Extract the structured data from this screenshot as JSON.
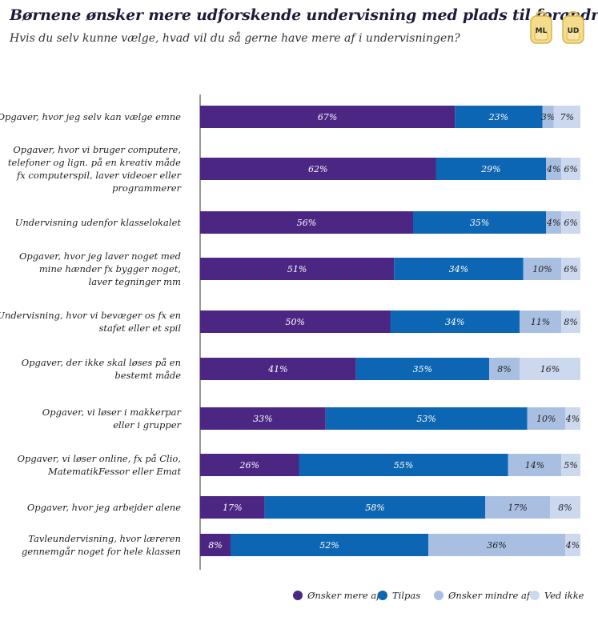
{
  "title": "Børnene ønsker mere udforskende undervisning med plads til forandring",
  "subtitle": "Hvis du selv kunne vælge, hvad vil du så gerne have mere af i undervisningen?",
  "badges": [
    {
      "text": "ML",
      "icon": "backpack-icon"
    },
    {
      "text": "UD",
      "icon": "backpack-icon"
    }
  ],
  "colors": {
    "onsker_mere": "#4b2683",
    "tilpas": "#0d66b3",
    "onsker_mindre": "#a8bfe2",
    "ved_ikke": "#ccd8ee"
  },
  "legend": [
    {
      "label": "Ønsker mere af",
      "color": "#4b2683"
    },
    {
      "label": "Tilpas",
      "color": "#0d66b3"
    },
    {
      "label": "Ønsker mindre af",
      "color": "#a8bfe2"
    },
    {
      "label": "Ved ikke",
      "color": "#ccd8ee"
    }
  ],
  "chart_data": {
    "type": "bar",
    "orientation": "horizontal",
    "stacked": true,
    "unit": "%",
    "title": "Børnene ønsker mere udforskende undervisning med plads til forandring",
    "subtitle": "Hvis du selv kunne vælge, hvad vil du så gerne have mere af i undervisningen?",
    "legend_position": "bottom-right",
    "grid": false,
    "categories": [
      [
        "Opgaver, hvor jeg selv kan vælge emne"
      ],
      [
        "Opgaver, hvor vi bruger computere,",
        "telefoner og lign. på en kreativ måde",
        "fx computerspil, laver videoer eller",
        "programmerer"
      ],
      [
        "Undervisning udenfor klasselokalet"
      ],
      [
        "Opgaver, hvor jeg laver noget med",
        "mine hænder fx bygger noget,",
        "laver tegninger mm"
      ],
      [
        "Undervisning, hvor vi bevæger os fx en",
        "stafet eller et spil"
      ],
      [
        "Opgaver, der ikke skal løses på en",
        "bestemt måde"
      ],
      [
        "Opgaver, vi løser i makkerpar",
        "eller i grupper"
      ],
      [
        "Opgaver, vi løser online, fx på Clio,",
        "MatematikFessor eller Emat"
      ],
      [
        "Opgaver, hvor jeg arbejder alene"
      ],
      [
        "Tavleundervisning, hvor læreren",
        "gennemgår noget for hele klassen"
      ]
    ],
    "series": [
      {
        "name": "Ønsker mere af",
        "values": [
          67,
          62,
          56,
          51,
          50,
          41,
          33,
          26,
          17,
          8
        ]
      },
      {
        "name": "Tilpas",
        "values": [
          23,
          29,
          35,
          34,
          34,
          35,
          53,
          55,
          58,
          52
        ]
      },
      {
        "name": "Ønsker mindre af",
        "values": [
          3,
          4,
          4,
          10,
          11,
          8,
          10,
          14,
          17,
          36
        ]
      },
      {
        "name": "Ved ikke",
        "values": [
          7,
          6,
          6,
          6,
          8,
          16,
          4,
          5,
          8,
          4
        ]
      }
    ]
  }
}
